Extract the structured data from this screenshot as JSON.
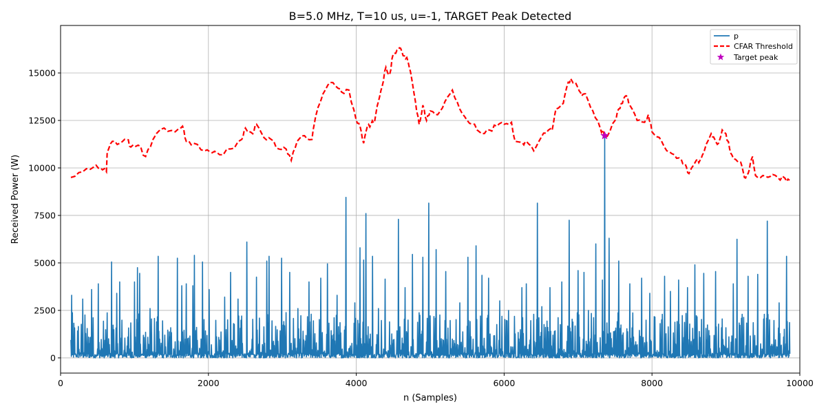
{
  "chart_data": {
    "type": "line",
    "title": "B=5.0 MHz, T=10 us, u=-1, TARGET Peak Detected",
    "xlabel": "n (Samples)",
    "ylabel": "Received Power (W)",
    "xlim": [
      0,
      10000
    ],
    "ylim": [
      -800,
      17500
    ],
    "xticks": [
      0,
      2000,
      4000,
      6000,
      8000,
      10000
    ],
    "yticks": [
      0,
      2500,
      5000,
      7500,
      10000,
      12500,
      15000
    ],
    "grid": true,
    "legend_position": "top-right",
    "series": [
      {
        "name": "p",
        "kind": "line",
        "color": "#1f77b4",
        "x_range": [
          140,
          9860
        ],
        "baseline_noise_max": 2400,
        "spikes": [
          [
            150,
            3300
          ],
          [
            300,
            3100
          ],
          [
            420,
            3600
          ],
          [
            510,
            3900
          ],
          [
            690,
            5050
          ],
          [
            760,
            3400
          ],
          [
            800,
            4000
          ],
          [
            1000,
            4000
          ],
          [
            1040,
            4750
          ],
          [
            1070,
            4450
          ],
          [
            1210,
            2600
          ],
          [
            1320,
            5350
          ],
          [
            1580,
            5250
          ],
          [
            1640,
            3800
          ],
          [
            1700,
            3900
          ],
          [
            1790,
            3800
          ],
          [
            1810,
            5400
          ],
          [
            1920,
            5050
          ],
          [
            2010,
            3600
          ],
          [
            2220,
            3200
          ],
          [
            2300,
            4500
          ],
          [
            2400,
            3100
          ],
          [
            2520,
            6100
          ],
          [
            2650,
            4250
          ],
          [
            2790,
            5100
          ],
          [
            2820,
            5350
          ],
          [
            2990,
            5250
          ],
          [
            3100,
            4500
          ],
          [
            3210,
            2600
          ],
          [
            3360,
            4000
          ],
          [
            3520,
            4200
          ],
          [
            3610,
            4950
          ],
          [
            3740,
            3300
          ],
          [
            3860,
            8450
          ],
          [
            3980,
            2900
          ],
          [
            4050,
            5800
          ],
          [
            4100,
            5150
          ],
          [
            4130,
            7600
          ],
          [
            4220,
            5350
          ],
          [
            4300,
            2600
          ],
          [
            4390,
            4150
          ],
          [
            4570,
            7300
          ],
          [
            4660,
            3700
          ],
          [
            4760,
            5450
          ],
          [
            4900,
            5300
          ],
          [
            4980,
            8150
          ],
          [
            5080,
            5700
          ],
          [
            5210,
            4550
          ],
          [
            5400,
            2900
          ],
          [
            5510,
            5300
          ],
          [
            5620,
            5900
          ],
          [
            5700,
            4350
          ],
          [
            5790,
            4200
          ],
          [
            5940,
            3000
          ],
          [
            6060,
            2500
          ],
          [
            6240,
            3700
          ],
          [
            6300,
            3900
          ],
          [
            6400,
            2300
          ],
          [
            6450,
            8150
          ],
          [
            6510,
            2700
          ],
          [
            6620,
            3700
          ],
          [
            6780,
            4000
          ],
          [
            6880,
            7250
          ],
          [
            7000,
            4600
          ],
          [
            7080,
            4500
          ],
          [
            7140,
            2500
          ],
          [
            7240,
            6000
          ],
          [
            7330,
            4100
          ],
          [
            7360,
            11700
          ],
          [
            7420,
            6300
          ],
          [
            7550,
            5100
          ],
          [
            7700,
            3900
          ],
          [
            7860,
            4200
          ],
          [
            7970,
            3400
          ],
          [
            8170,
            4300
          ],
          [
            8250,
            3500
          ],
          [
            8360,
            4100
          ],
          [
            8480,
            3700
          ],
          [
            8580,
            4900
          ],
          [
            8700,
            4450
          ],
          [
            8860,
            4550
          ],
          [
            9100,
            3900
          ],
          [
            9150,
            6250
          ],
          [
            9220,
            2300
          ],
          [
            9300,
            4300
          ],
          [
            9430,
            4400
          ],
          [
            9520,
            2300
          ],
          [
            9560,
            7200
          ],
          [
            9720,
            2900
          ],
          [
            9820,
            5350
          ]
        ]
      },
      {
        "name": "CFAR Threshold",
        "kind": "dashed-line",
        "color": "#ff0000",
        "x": [
          140,
          300,
          450,
          540,
          620,
          630,
          700,
          800,
          900,
          950,
          1050,
          1150,
          1250,
          1400,
          1550,
          1650,
          1700,
          1800,
          1950,
          2050,
          2150,
          2300,
          2450,
          2500,
          2600,
          2650,
          2750,
          2850,
          2950,
          3050,
          3120,
          3200,
          3300,
          3400,
          3450,
          3550,
          3650,
          3750,
          3800,
          3900,
          4000,
          4050,
          4100,
          4150,
          4200,
          4250,
          4300,
          4350,
          4400,
          4450,
          4500,
          4550,
          4600,
          4650,
          4700,
          4750,
          4800,
          4850,
          4900,
          4950,
          5000,
          5100,
          5200,
          5300,
          5400,
          5500,
          5600,
          5700,
          5800,
          5900,
          6000,
          6100,
          6150,
          6250,
          6300,
          6400,
          6500,
          6600,
          6650,
          6700,
          6800,
          6850,
          6900,
          7000,
          7050,
          7100,
          7200,
          7300,
          7350,
          7400,
          7500,
          7550,
          7600,
          7650,
          7700,
          7800,
          7900,
          7950,
          8000,
          8100,
          8200,
          8300,
          8400,
          8450,
          8500,
          8600,
          8650,
          8700,
          8800,
          8850,
          8900,
          8950,
          9000,
          9050,
          9100,
          9200,
          9250,
          9300,
          9350,
          9360,
          9400,
          9500,
          9600,
          9700,
          9800,
          9860
        ],
        "y": [
          9500,
          9800,
          10050,
          10000,
          9800,
          10800,
          11400,
          11300,
          11500,
          11100,
          11200,
          10600,
          11500,
          12100,
          11900,
          12200,
          11400,
          11300,
          10900,
          10800,
          10700,
          11000,
          11500,
          12100,
          11800,
          12300,
          11600,
          11500,
          11000,
          11000,
          10400,
          11400,
          11700,
          11500,
          12700,
          13900,
          14500,
          14200,
          14000,
          14100,
          12500,
          12200,
          11300,
          12200,
          12300,
          12500,
          13500,
          14300,
          15300,
          14900,
          16000,
          16200,
          16300,
          15900,
          15600,
          14700,
          13500,
          12300,
          13300,
          12500,
          13000,
          12800,
          13500,
          14100,
          13100,
          12500,
          12300,
          11800,
          12000,
          12200,
          12300,
          12400,
          11400,
          11300,
          11400,
          10900,
          11600,
          12000,
          12000,
          13100,
          13400,
          14300,
          14700,
          14200,
          13800,
          13900,
          13000,
          12100,
          11800,
          11700,
          12500,
          13100,
          13400,
          13800,
          13300,
          12500,
          12400,
          12800,
          11900,
          11600,
          10900,
          10700,
          10400,
          10200,
          9700,
          10400,
          10400,
          10800,
          11800,
          11500,
          11300,
          12000,
          11800,
          11000,
          10500,
          10300,
          9500,
          9700,
          10500,
          10600,
          9600,
          9600,
          9550,
          9500,
          9450,
          9350
        ]
      },
      {
        "name": "Target peak",
        "kind": "marker",
        "marker": "star",
        "color": "#bf00bf",
        "x": [
          7360
        ],
        "y": [
          11700
        ]
      }
    ]
  }
}
